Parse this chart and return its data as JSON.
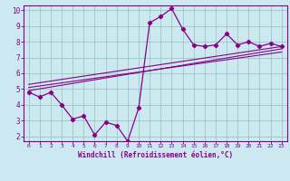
{
  "xlabel": "Windchill (Refroidissement éolien,°C)",
  "bg_color": "#cce8f0",
  "line_color": "#880088",
  "grid_color": "#99ccbb",
  "xlim": [
    -0.5,
    23.5
  ],
  "ylim": [
    1.7,
    10.3
  ],
  "yticks": [
    2,
    3,
    4,
    5,
    6,
    7,
    8,
    9,
    10
  ],
  "xticks": [
    0,
    1,
    2,
    3,
    4,
    5,
    6,
    7,
    8,
    9,
    10,
    11,
    12,
    13,
    14,
    15,
    16,
    17,
    18,
    19,
    20,
    21,
    22,
    23
  ],
  "main_x": [
    0,
    1,
    2,
    3,
    4,
    5,
    6,
    7,
    8,
    9,
    10,
    11,
    12,
    13,
    14,
    15,
    16,
    17,
    18,
    19,
    20,
    21,
    22,
    23
  ],
  "main_y": [
    4.8,
    4.5,
    4.8,
    4.0,
    3.1,
    3.3,
    2.1,
    2.9,
    2.7,
    1.7,
    3.8,
    9.2,
    9.6,
    10.1,
    8.8,
    7.8,
    7.7,
    7.8,
    8.5,
    7.8,
    8.0,
    7.7,
    7.9,
    7.7
  ],
  "line1_x": [
    0,
    23
  ],
  "line1_y": [
    4.9,
    7.55
  ],
  "line2_x": [
    0,
    23
  ],
  "line2_y": [
    5.1,
    7.35
  ],
  "line3_x": [
    0,
    23
  ],
  "line3_y": [
    5.3,
    7.7
  ]
}
